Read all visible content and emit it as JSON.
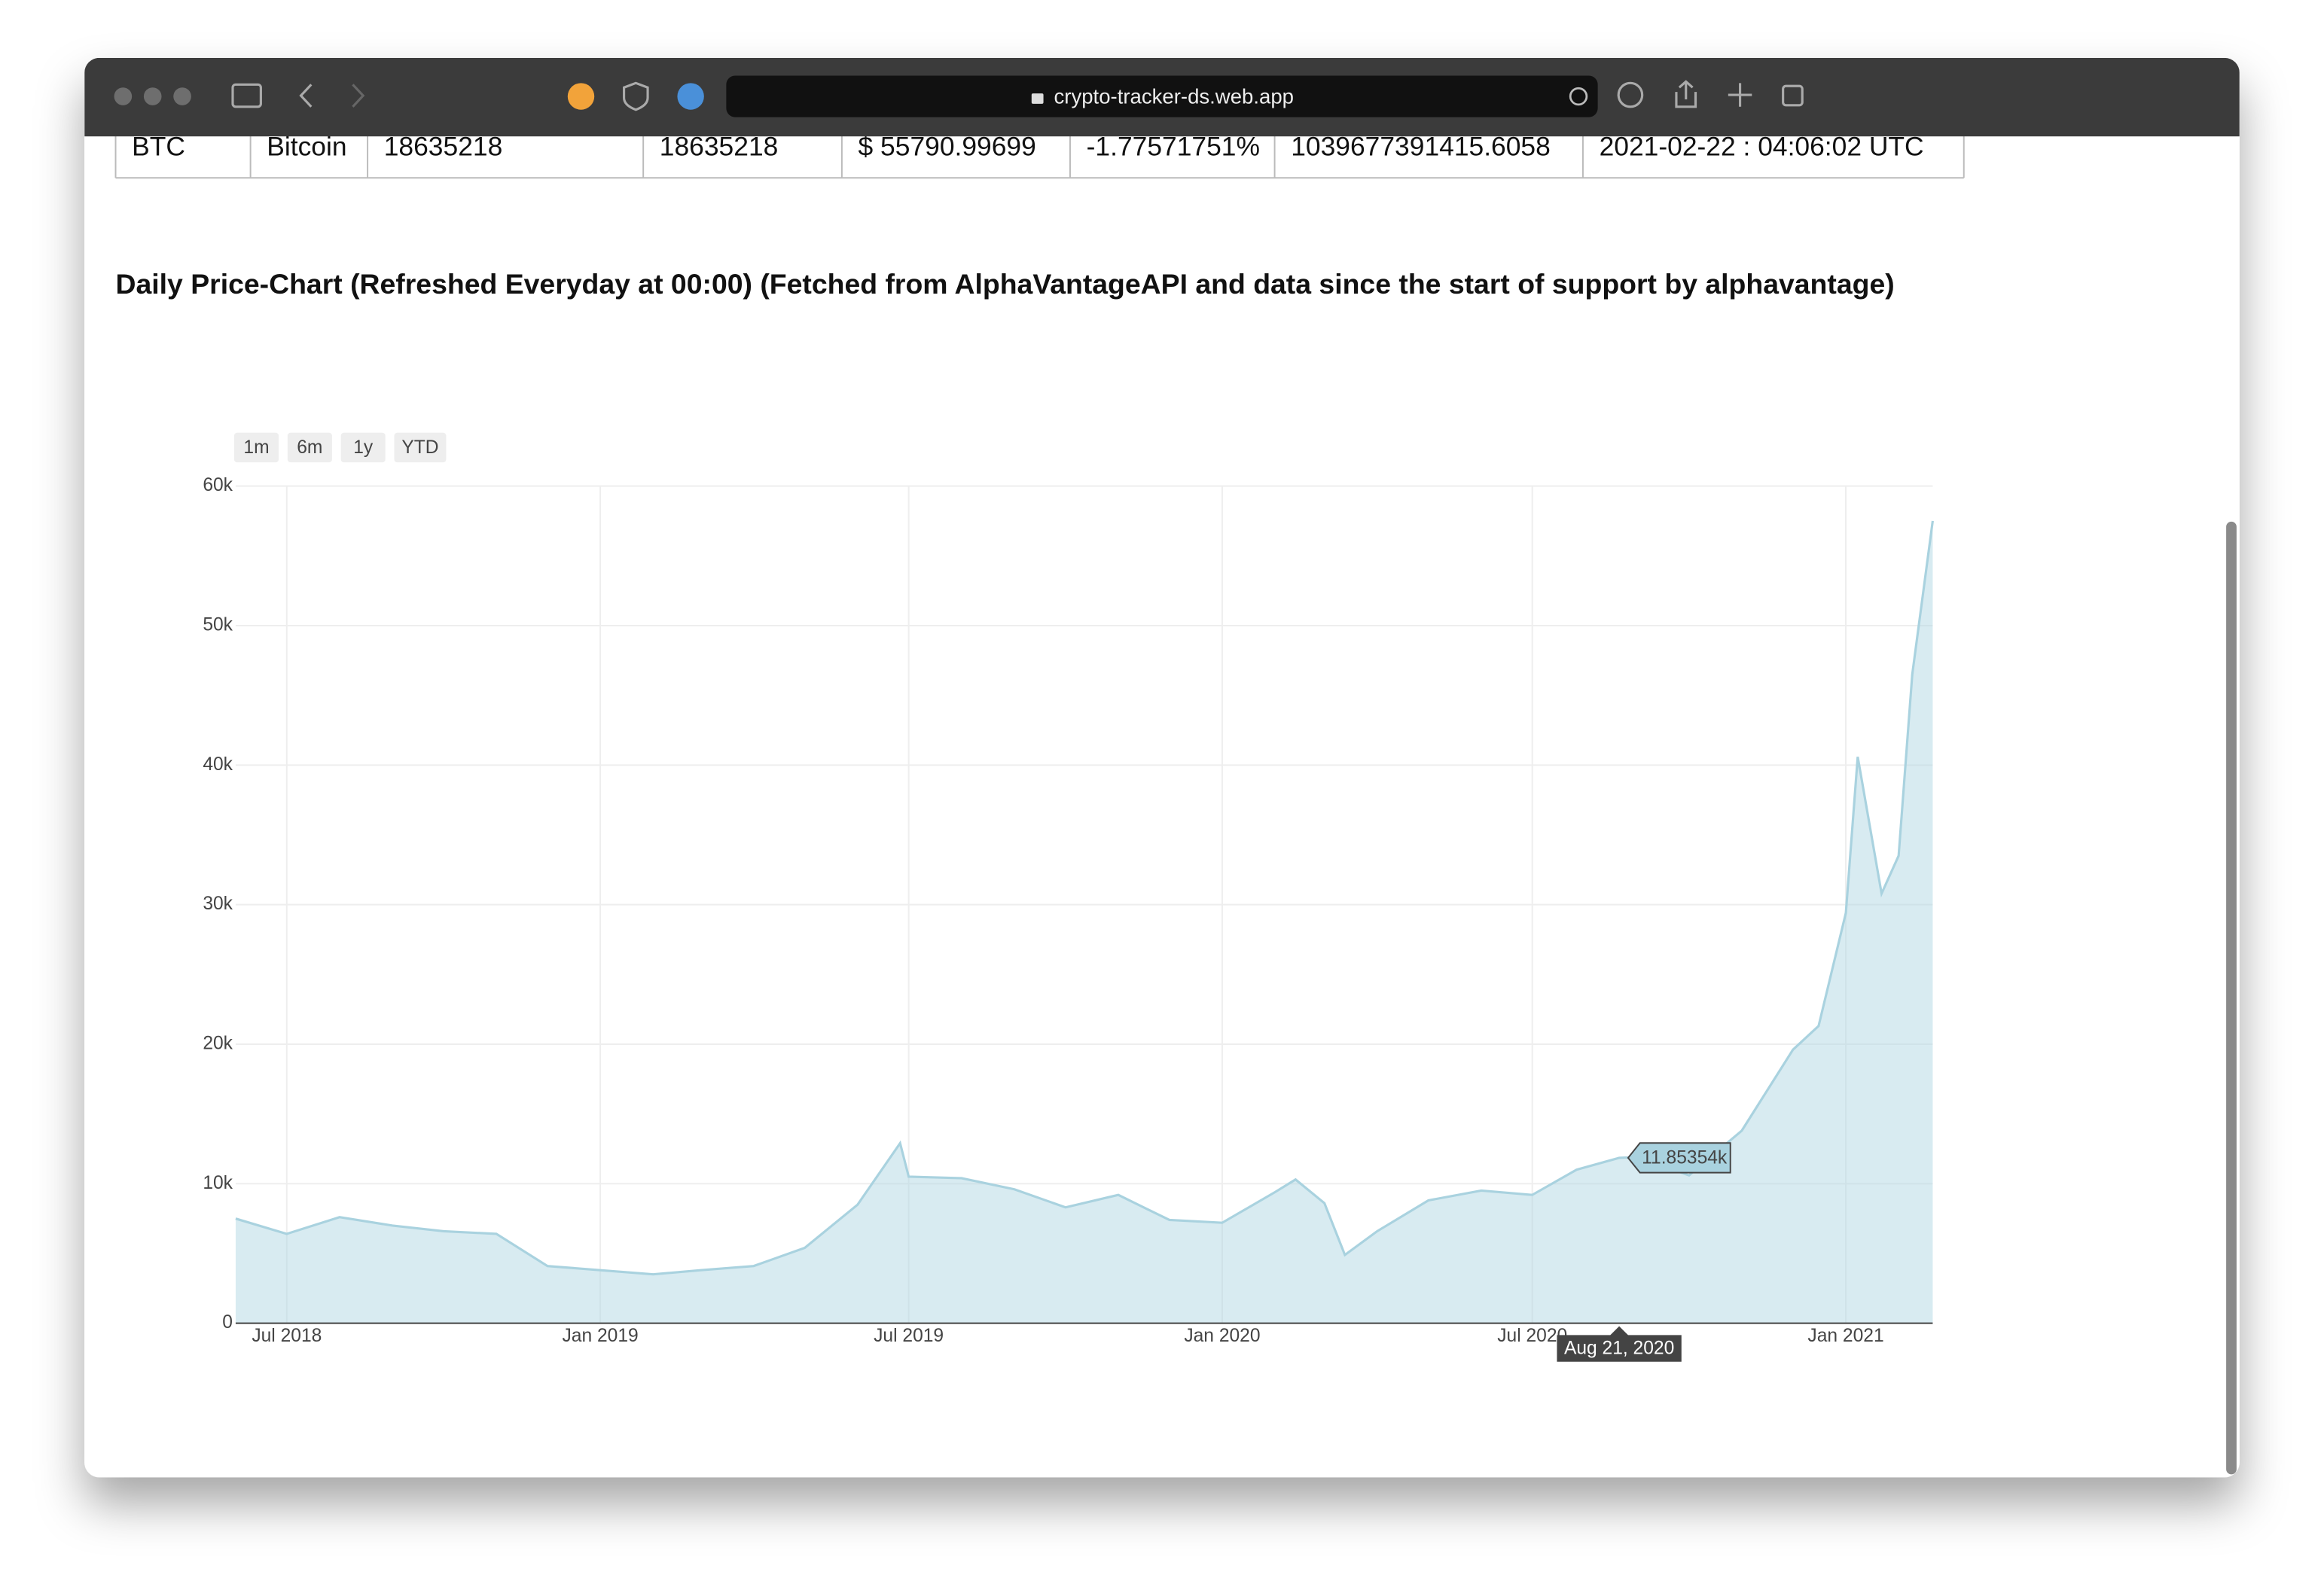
{
  "browser": {
    "url": "crypto-tracker-ds.web.app"
  },
  "table": {
    "rows": [
      [
        "BTC",
        "Bitcoin",
        "18635218",
        "18635218",
        "$ 55790.99699",
        "-1.77571751%",
        "1039677391415.6058",
        "2021-02-22 : 04:06:02 UTC"
      ]
    ]
  },
  "heading": "Daily Price-Chart (Refreshed Everyday at 00:00) (Fetched from AlphaVantageAPI and data since the start of support by alphavantage)",
  "range_buttons": [
    "1m",
    "6m",
    "1y",
    "YTD"
  ],
  "chart_data": {
    "type": "area",
    "color": "#a9d2df",
    "x": [
      "2018-06-01",
      "2018-07-01",
      "2018-08-01",
      "2018-09-01",
      "2018-10-01",
      "2018-11-01",
      "2018-12-01",
      "2019-01-01",
      "2019-02-01",
      "2019-03-01",
      "2019-04-01",
      "2019-05-01",
      "2019-06-01",
      "2019-06-26",
      "2019-07-01",
      "2019-08-01",
      "2019-09-01",
      "2019-10-01",
      "2019-11-01",
      "2019-12-01",
      "2020-01-01",
      "2020-02-01",
      "2020-02-13",
      "2020-03-01",
      "2020-03-13",
      "2020-04-01",
      "2020-05-01",
      "2020-06-01",
      "2020-07-01",
      "2020-07-27",
      "2020-08-21",
      "2020-09-01",
      "2020-10-01",
      "2020-11-01",
      "2020-12-01",
      "2020-12-16",
      "2021-01-01",
      "2021-01-08",
      "2021-01-22",
      "2021-02-01",
      "2021-02-09",
      "2021-02-21"
    ],
    "values": [
      7500,
      6400,
      7600,
      7000,
      6600,
      6400,
      4100,
      3800,
      3500,
      3800,
      4100,
      5400,
      8500,
      12900,
      10500,
      10400,
      9600,
      8300,
      9200,
      7400,
      7200,
      9400,
      10300,
      8600,
      4900,
      6600,
      8800,
      9500,
      9200,
      11000,
      11853.54,
      11900,
      10600,
      13800,
      19600,
      21300,
      29400,
      40600,
      30800,
      33500,
      46500,
      57500
    ],
    "xlim": [
      "2018-06-01",
      "2021-02-21"
    ],
    "xticks": [
      {
        "value": "2018-07-01",
        "label": "Jul 2018"
      },
      {
        "value": "2019-01-01",
        "label": "Jan 2019"
      },
      {
        "value": "2019-07-01",
        "label": "Jul 2019"
      },
      {
        "value": "2020-01-01",
        "label": "Jan 2020"
      },
      {
        "value": "2020-07-01",
        "label": "Jul 2020"
      },
      {
        "value": "2021-01-01",
        "label": "Jan 2021"
      }
    ],
    "ylim": [
      0,
      60000
    ],
    "yticks": [
      {
        "value": 0,
        "label": "0"
      },
      {
        "value": 10000,
        "label": "10k"
      },
      {
        "value": 20000,
        "label": "20k"
      },
      {
        "value": 30000,
        "label": "30k"
      },
      {
        "value": 40000,
        "label": "40k"
      },
      {
        "value": 50000,
        "label": "50k"
      },
      {
        "value": 60000,
        "label": "60k"
      }
    ],
    "grid": true,
    "hover": {
      "x": "2020-08-21",
      "x_label": "Aug 21, 2020",
      "value": 11853.54,
      "label": "11.85354k"
    }
  }
}
